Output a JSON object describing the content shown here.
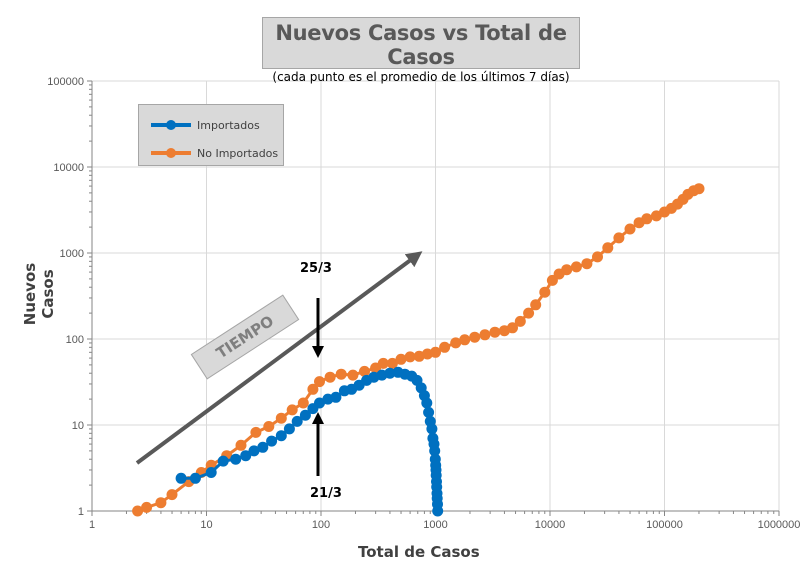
{
  "title": "Nuevos Casos vs Total de Casos",
  "subtitle": "(cada punto es el promedio de los últimos 7 días)",
  "chart_data": {
    "type": "scatter",
    "xscale": "log",
    "yscale": "log",
    "xlim": [
      1,
      1000000
    ],
    "ylim": [
      1,
      100000
    ],
    "grid": true,
    "legend_position": "top-left",
    "xlabel": "Total de Casos",
    "ylabel": "Nuevos Casos",
    "x_ticks": [
      "1",
      "10",
      "100",
      "1000",
      "10000",
      "100000",
      "1000000"
    ],
    "y_ticks": [
      "1",
      "10",
      "100",
      "1000",
      "10000",
      "100000"
    ],
    "series": [
      {
        "name": "Importados",
        "color": "#0070c0",
        "marker": "circle",
        "points": [
          [
            6,
            2.4
          ],
          [
            8,
            2.4
          ],
          [
            11,
            2.8
          ],
          [
            14,
            3.8
          ],
          [
            18,
            4.0
          ],
          [
            22,
            4.4
          ],
          [
            26,
            5.0
          ],
          [
            31,
            5.5
          ],
          [
            37,
            6.5
          ],
          [
            45,
            7.5
          ],
          [
            53,
            9.0
          ],
          [
            62,
            11.0
          ],
          [
            73,
            13.0
          ],
          [
            85,
            15.5
          ],
          [
            97,
            18
          ],
          [
            115,
            20
          ],
          [
            135,
            21
          ],
          [
            160,
            25
          ],
          [
            185,
            26
          ],
          [
            215,
            29
          ],
          [
            250,
            33
          ],
          [
            290,
            36
          ],
          [
            340,
            38
          ],
          [
            400,
            40
          ],
          [
            470,
            41
          ],
          [
            540,
            39
          ],
          [
            620,
            37
          ],
          [
            690,
            33
          ],
          [
            750,
            27
          ],
          [
            800,
            22
          ],
          [
            840,
            18
          ],
          [
            870,
            14
          ],
          [
            900,
            11
          ],
          [
            930,
            9
          ],
          [
            950,
            7
          ],
          [
            970,
            6
          ],
          [
            985,
            5
          ],
          [
            995,
            4
          ],
          [
            1005,
            3.4
          ],
          [
            1010,
            3
          ],
          [
            1015,
            2.6
          ],
          [
            1020,
            2.2
          ],
          [
            1025,
            1.9
          ],
          [
            1030,
            1.6
          ],
          [
            1035,
            1.4
          ],
          [
            1040,
            1.2
          ],
          [
            1045,
            1.0
          ]
        ]
      },
      {
        "name": "No Importados",
        "color": "#ed7d31",
        "marker": "circle",
        "points": [
          [
            2.5,
            0.95
          ],
          [
            3,
            1.1
          ],
          [
            4,
            1.25
          ],
          [
            5,
            1.55
          ],
          [
            7,
            2.2
          ],
          [
            9,
            2.8
          ],
          [
            11,
            3.4
          ],
          [
            15,
            4.4
          ],
          [
            20,
            5.8
          ],
          [
            27,
            8.2
          ],
          [
            35,
            9.6
          ],
          [
            45,
            12
          ],
          [
            56,
            15
          ],
          [
            70,
            18
          ],
          [
            85,
            26
          ],
          [
            97,
            32
          ],
          [
            120,
            36
          ],
          [
            150,
            39
          ],
          [
            190,
            38
          ],
          [
            240,
            42
          ],
          [
            300,
            46
          ],
          [
            350,
            52
          ],
          [
            420,
            52
          ],
          [
            500,
            58
          ],
          [
            600,
            62
          ],
          [
            720,
            63
          ],
          [
            850,
            67
          ],
          [
            1000,
            70
          ],
          [
            1200,
            80
          ],
          [
            1500,
            90
          ],
          [
            1800,
            98
          ],
          [
            2200,
            105
          ],
          [
            2700,
            112
          ],
          [
            3300,
            120
          ],
          [
            4000,
            125
          ],
          [
            4700,
            135
          ],
          [
            5500,
            160
          ],
          [
            6500,
            200
          ],
          [
            7500,
            250
          ],
          [
            9000,
            350
          ],
          [
            10500,
            480
          ],
          [
            12000,
            570
          ],
          [
            14000,
            640
          ],
          [
            17000,
            690
          ],
          [
            21000,
            750
          ],
          [
            26000,
            900
          ],
          [
            32000,
            1150
          ],
          [
            40000,
            1500
          ],
          [
            50000,
            1900
          ],
          [
            60000,
            2250
          ],
          [
            70000,
            2500
          ],
          [
            85000,
            2700
          ],
          [
            100000,
            3000
          ],
          [
            115000,
            3300
          ],
          [
            130000,
            3700
          ],
          [
            145000,
            4200
          ],
          [
            160000,
            4800
          ],
          [
            180000,
            5300
          ],
          [
            200000,
            5600
          ]
        ]
      }
    ],
    "annotations": [
      {
        "text": "TIEMPO",
        "type": "arrow-label"
      },
      {
        "text": "25/3",
        "type": "down-arrow"
      },
      {
        "text": "21/3",
        "type": "up-arrow"
      }
    ]
  }
}
